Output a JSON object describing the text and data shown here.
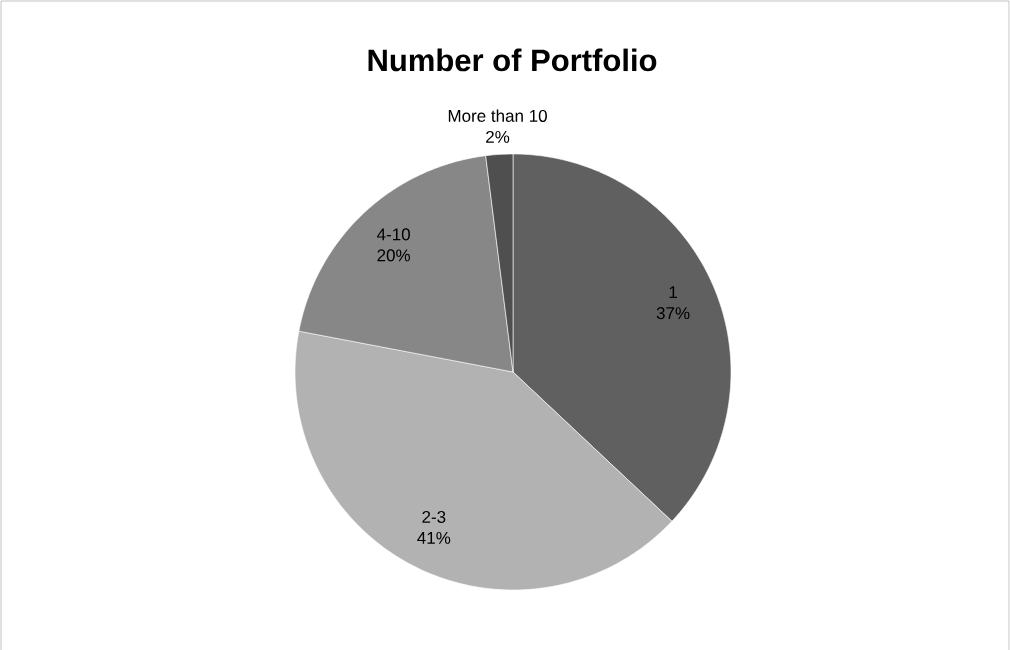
{
  "chart_data": {
    "type": "pie",
    "title": "Number of Portfolio",
    "categories": [
      "1",
      "2-3",
      "4-10",
      "More than 10"
    ],
    "values": [
      37,
      41,
      20,
      2
    ],
    "value_labels": [
      "37%",
      "41%",
      "20%",
      "2%"
    ],
    "colors": [
      "#606060",
      "#b2b2b2",
      "#878787",
      "#4f4f4f"
    ]
  }
}
